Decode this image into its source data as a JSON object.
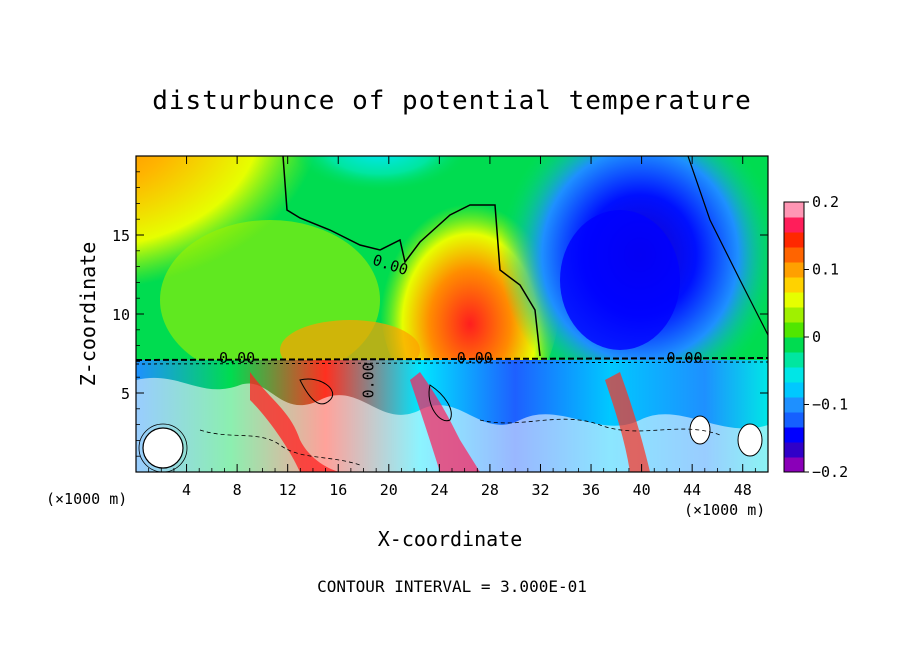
{
  "chart_data": {
    "type": "heatmap",
    "title": "disturbunce of potential temperature",
    "xlabel": "X-coordinate",
    "ylabel": "Z-coordinate",
    "x_unit": "(×1000 m)",
    "x_ticks": [
      "4",
      "8",
      "12",
      "16",
      "20",
      "24",
      "28",
      "32",
      "36",
      "40",
      "44",
      "48"
    ],
    "x_tick_values": [
      4,
      8,
      12,
      16,
      20,
      24,
      28,
      32,
      36,
      40,
      44,
      48
    ],
    "y_ticks": [
      "5",
      "10",
      "15"
    ],
    "y_tick_values": [
      5,
      10,
      15
    ],
    "xlim": [
      0,
      50
    ],
    "ylim": [
      0,
      20
    ],
    "colorbar": {
      "ticks": [
        "0.2",
        "0.1",
        "0",
        "−0.1",
        "−0.2"
      ],
      "tick_values": [
        0.2,
        0.1,
        0,
        -0.1,
        -0.2
      ],
      "range": [
        -0.2,
        0.2
      ],
      "colors": [
        "#8a00b8",
        "#3000c8",
        "#0000ff",
        "#1560ff",
        "#1e90ff",
        "#00c8ff",
        "#00e6e6",
        "#00e6a0",
        "#00dc50",
        "#50e600",
        "#a0f000",
        "#e6ff00",
        "#ffd200",
        "#ffa000",
        "#ff6400",
        "#ff2800",
        "#ff1e5a",
        "#ff96b4"
      ]
    },
    "contour_labels": [
      "0.00",
      "0.00",
      "0.00",
      "0.00",
      "0.00"
    ],
    "contour_interval_text": "CONTOUR INTERVAL = 3.000E-01"
  }
}
